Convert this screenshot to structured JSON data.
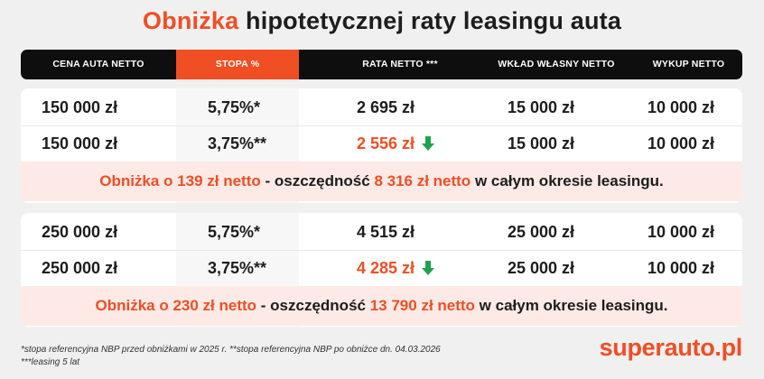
{
  "title": {
    "accent": "Obniżka",
    "rest": "hipotetycznej raty leasingu auta"
  },
  "headers": [
    "CENA AUTA NETTO",
    "STOPA %",
    "RATA NETTO ***",
    "WKŁAD WŁASNY NETTO",
    "WYKUP NETTO"
  ],
  "colors": {
    "accent": "#f04e23",
    "header_bg": "#0e0e0e",
    "summary_bg": "#fdeae6",
    "arrow": "#1fa34a"
  },
  "groups": [
    {
      "rows": [
        {
          "price": "150 000 zł",
          "rate": "5,75%*",
          "installment": "2 695 zł",
          "down_payment": "15 000 zł",
          "buyout": "10 000 zł"
        },
        {
          "price": "150 000 zł",
          "rate": "3,75%**",
          "installment": "2 556 zł",
          "down_payment": "15 000 zł",
          "buyout": "10 000 zł",
          "icon": "arrow-down-icon"
        }
      ],
      "summary": {
        "reduction": "Obniżka o 139 zł  netto",
        "middle": "- oszczędność",
        "savings": "8 316 zł netto",
        "end": "w całym okresie leasingu."
      }
    },
    {
      "rows": [
        {
          "price": "250 000 zł",
          "rate": "5,75%*",
          "installment": "4 515 zł",
          "down_payment": "25 000 zł",
          "buyout": "10 000 zł"
        },
        {
          "price": "250 000 zł",
          "rate": "3,75%**",
          "installment": "4 285 zł",
          "down_payment": "25 000 zł",
          "buyout": "10 000 zł",
          "icon": "arrow-down-icon"
        }
      ],
      "summary": {
        "reduction": "Obniżka o 230 zł  netto",
        "middle": "- oszczędność",
        "savings": "13 790 zł netto",
        "end": "w całym okresie leasingu."
      }
    }
  ],
  "footnotes": [
    "*stopa referencyjna NBP przed obniżkami w 2025 r.  **stopa referencyjna NBP po obniżce dn. 04.03.2026",
    "***leasing 5 lat"
  ],
  "brand": "superauto.pl"
}
